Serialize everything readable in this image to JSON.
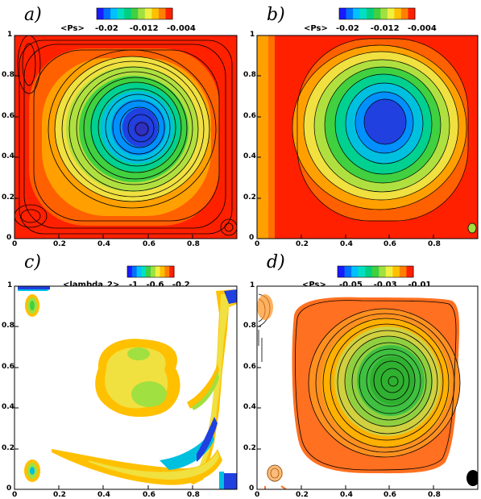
{
  "figure": {
    "panels": [
      {
        "label": "a)",
        "colorbar": {
          "title": "<Ps>",
          "ticks": [
            "-0.02",
            "-0.012",
            "-0.004"
          ],
          "colors": [
            "#1a1aff",
            "#0070ff",
            "#00c0ff",
            "#00e0c0",
            "#00d080",
            "#40d040",
            "#a0e040",
            "#f0f040",
            "#ffc000",
            "#ff8000",
            "#ff2000"
          ]
        },
        "chart_data": {
          "type": "heatmap",
          "field": "<Ps>",
          "xlim": [
            0,
            1
          ],
          "ylim": [
            0,
            1
          ],
          "streamlines": true,
          "x_ticks": [
            "0",
            "0.2",
            "0.4",
            "0.6",
            "0.8"
          ],
          "y_ticks": [
            "0",
            "0.2",
            "0.4",
            "0.6",
            "0.8",
            "1"
          ]
        }
      },
      {
        "label": "b)",
        "colorbar": {
          "title": "<Ps>",
          "ticks": [
            "-0.02",
            "-0.012",
            "-0.004"
          ],
          "colors": [
            "#1a1aff",
            "#0070ff",
            "#00c0ff",
            "#00e0c0",
            "#00d080",
            "#40d040",
            "#a0e040",
            "#f0f040",
            "#ffc000",
            "#ff8000",
            "#ff2000"
          ]
        },
        "chart_data": {
          "type": "heatmap",
          "field": "<Ps>",
          "xlim": [
            0,
            1
          ],
          "ylim": [
            0,
            1
          ],
          "streamlines": false,
          "x_ticks": [
            "0",
            "0.2",
            "0.4",
            "0.6",
            "0.8"
          ],
          "y_ticks": [
            "0",
            "0.2",
            "0.4",
            "0.6",
            "0.8",
            "1"
          ]
        }
      },
      {
        "label": "c)",
        "colorbar": {
          "title": "<lambda_2>",
          "ticks": [
            "-1",
            "-0.6",
            "-0.2"
          ],
          "colors": [
            "#1a1aff",
            "#0070ff",
            "#00c0ff",
            "#00e0c0",
            "#40d040",
            "#a0e040",
            "#f0f040",
            "#ffc000",
            "#ff8000",
            "#ff2000"
          ]
        },
        "chart_data": {
          "type": "heatmap",
          "field": "<lambda_2>",
          "xlim": [
            0,
            1
          ],
          "ylim": [
            0,
            1
          ],
          "streamlines": false,
          "x_ticks": [
            "0",
            "0.2",
            "0.4",
            "0.6",
            "0.8"
          ],
          "y_ticks": [
            "0",
            "0.2",
            "0.4",
            "0.6",
            "0.8",
            "1"
          ]
        }
      },
      {
        "label": "d)",
        "colorbar": {
          "title": "<Ps>",
          "ticks": [
            "-0.05",
            "-0.03",
            "-0.01"
          ],
          "colors": [
            "#1a1aff",
            "#0070ff",
            "#00c0ff",
            "#00e0c0",
            "#00d080",
            "#40d040",
            "#a0e040",
            "#f0f040",
            "#ffc000",
            "#ff8000",
            "#ff2000"
          ]
        },
        "chart_data": {
          "type": "heatmap",
          "field": "<Ps>",
          "xlim": [
            0,
            1
          ],
          "ylim": [
            0,
            1
          ],
          "streamlines": true,
          "x_ticks": [
            "0",
            "0.2",
            "0.4",
            "0.6",
            "0.8"
          ],
          "y_ticks": [
            "0",
            "0.2",
            "0.4",
            "0.6",
            "0.8",
            "1"
          ]
        }
      }
    ]
  }
}
